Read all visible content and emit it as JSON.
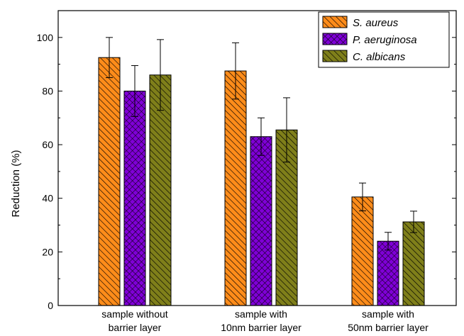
{
  "chart_data": {
    "type": "bar",
    "ylabel": "Reduction (%)",
    "ylim": [
      0,
      110
    ],
    "yticks": [
      0,
      20,
      40,
      60,
      80,
      100
    ],
    "grid": false,
    "legend_position": "top-right",
    "categories": [
      [
        "sample without",
        "barrier layer"
      ],
      [
        "sample with",
        "10nm barrier layer"
      ],
      [
        "sample with",
        "50nm barrier layer"
      ]
    ],
    "series": [
      {
        "name": "S. aureus",
        "color": "#ff8c1a",
        "pattern": "diagonal-lines",
        "values": [
          92.5,
          87.5,
          40.5
        ],
        "errors": [
          7.5,
          10.5,
          5.2
        ]
      },
      {
        "name": "P. aeruginosa",
        "color": "#7f00d6",
        "pattern": "crosshatch",
        "values": [
          80.0,
          63.0,
          24.0
        ],
        "errors": [
          9.5,
          7.0,
          3.3
        ]
      },
      {
        "name": "C. albicans",
        "color": "#7f7f1a",
        "pattern": "diagonal-lines",
        "values": [
          86.0,
          65.5,
          31.2
        ],
        "errors": [
          13.2,
          12.0,
          4.0
        ]
      }
    ]
  }
}
